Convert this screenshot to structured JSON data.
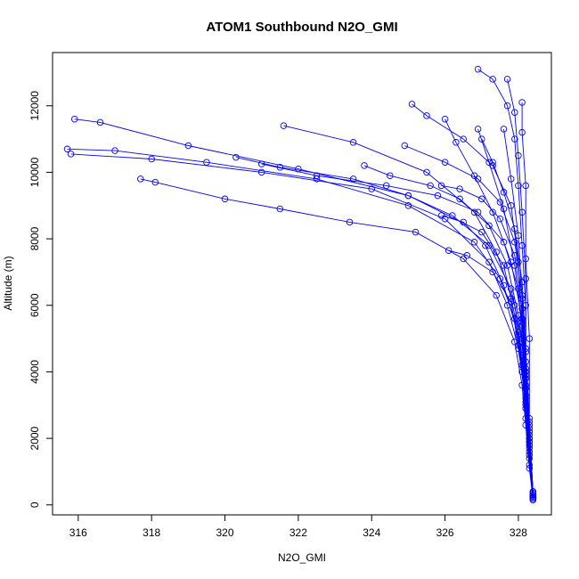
{
  "chart_data": {
    "type": "line",
    "title": "ATOM1 Southbound N2O_GMI",
    "xlabel": "N2O_GMI",
    "ylabel": "Altitude (m)",
    "xlim": [
      315.3,
      328.9
    ],
    "ylim": [
      -300,
      13600
    ],
    "xticks": [
      316,
      318,
      320,
      322,
      324,
      326,
      328
    ],
    "yticks": [
      0,
      2000,
      4000,
      6000,
      8000,
      10000,
      12000
    ],
    "grid": false,
    "legend": "none",
    "color": "#0000ff",
    "markers": "open circles joined by lines",
    "series": [
      {
        "x": [
          328.4,
          328.3,
          328.2,
          328.1,
          328.0,
          327.8,
          327.6,
          327.0,
          325.0,
          322.0,
          319.0,
          316.6,
          315.9
        ],
        "y": [
          200,
          1200,
          2600,
          4000,
          5200,
          6200,
          7200,
          8200,
          9300,
          10100,
          10800,
          11500,
          11600
        ]
      },
      {
        "x": [
          328.4,
          328.3,
          328.2,
          328.1,
          327.9,
          327.5,
          326.8,
          325.0,
          322.5,
          319.5,
          317.0,
          315.7
        ],
        "y": [
          300,
          1400,
          2900,
          4200,
          5600,
          6800,
          7900,
          9000,
          9800,
          10300,
          10650,
          10700
        ]
      },
      {
        "x": [
          328.4,
          328.3,
          328.2,
          328.0,
          327.7,
          327.2,
          326.0,
          324.0,
          321.0,
          318.0,
          315.8
        ],
        "y": [
          250,
          1600,
          3100,
          4700,
          6000,
          7300,
          8600,
          9500,
          10000,
          10400,
          10550
        ]
      },
      {
        "x": [
          328.4,
          328.3,
          328.2,
          328.1,
          327.9,
          327.4,
          326.5,
          325.2,
          323.4,
          321.5,
          320.0,
          318.1,
          317.7
        ],
        "y": [
          150,
          1100,
          2400,
          3600,
          4900,
          6300,
          7400,
          8200,
          8500,
          8900,
          9200,
          9700,
          9800
        ]
      },
      {
        "x": [
          328.4,
          328.3,
          328.2,
          328.0,
          327.8,
          327.3,
          326.6,
          326.1
        ],
        "y": [
          350,
          1800,
          3300,
          4800,
          6100,
          7000,
          7500,
          7650
        ]
      },
      {
        "x": [
          328.4,
          328.3,
          328.2,
          328.1,
          327.9,
          327.4,
          326.8,
          325.5,
          323.5,
          321.6
        ],
        "y": [
          200,
          1500,
          3000,
          4500,
          6000,
          7600,
          8800,
          10000,
          10900,
          11400
        ]
      },
      {
        "x": [
          328.4,
          328.3,
          328.2,
          328.1,
          328.0,
          327.8,
          327.3,
          326.5,
          325.5,
          325.1
        ],
        "y": [
          400,
          2000,
          3800,
          5500,
          7300,
          9000,
          10200,
          11000,
          11700,
          12050
        ]
      },
      {
        "x": [
          328.4,
          328.3,
          328.2,
          328.2,
          328.1,
          328.0,
          327.9,
          327.7,
          327.3,
          326.9
        ],
        "y": [
          300,
          2200,
          4100,
          6000,
          7800,
          9600,
          11000,
          12000,
          12800,
          13100
        ]
      },
      {
        "x": [
          328.4,
          328.3,
          328.2,
          328.2,
          328.1,
          328.0,
          327.9,
          327.7
        ],
        "y": [
          200,
          2400,
          4600,
          6800,
          8800,
          10500,
          11800,
          12800
        ]
      },
      {
        "x": [
          328.4,
          328.3,
          328.3,
          328.2,
          328.2,
          328.1,
          328.1
        ],
        "y": [
          150,
          2600,
          5000,
          7400,
          9600,
          11200,
          12100
        ]
      },
      {
        "x": [
          328.4,
          328.3,
          328.2,
          328.1,
          328.0,
          327.6,
          326.9,
          325.8,
          324.4,
          322.5,
          321.0
        ],
        "y": [
          300,
          1900,
          3500,
          5000,
          6500,
          7900,
          8800,
          9300,
          9600,
          9900,
          10250
        ]
      },
      {
        "x": [
          328.4,
          328.3,
          328.2,
          328.1,
          327.8,
          327.2,
          326.2,
          325.0,
          323.5,
          321.5,
          320.3
        ],
        "y": [
          200,
          1700,
          3200,
          4900,
          6500,
          7800,
          8700,
          9300,
          9800,
          10150,
          10450
        ]
      },
      {
        "x": [
          328.4,
          328.3,
          328.2,
          328.0,
          327.7,
          327.2,
          326.4,
          325.6,
          324.5,
          323.8
        ],
        "y": [
          250,
          2100,
          3900,
          5700,
          7200,
          8400,
          9200,
          9600,
          9900,
          10200
        ]
      },
      {
        "x": [
          328.4,
          328.3,
          328.2,
          328.1,
          327.9,
          327.5,
          326.9,
          326.0,
          324.9
        ],
        "y": [
          350,
          2300,
          4300,
          6300,
          7900,
          9100,
          9800,
          10300,
          10800
        ]
      },
      {
        "x": [
          328.4,
          328.3,
          328.2,
          328.1,
          327.8,
          327.3,
          326.8,
          326.3,
          326.0
        ],
        "y": [
          300,
          2000,
          3800,
          5600,
          7300,
          8800,
          9900,
          10900,
          11600
        ]
      },
      {
        "x": [
          328.4,
          328.3,
          328.2,
          328.1,
          327.9,
          327.6,
          327.2,
          326.9
        ],
        "y": [
          200,
          1800,
          3600,
          5400,
          7200,
          8900,
          10300,
          11300
        ]
      },
      {
        "x": [
          328.4,
          328.3,
          328.2,
          328.1,
          327.9,
          327.5,
          327.0,
          326.4,
          325.9
        ],
        "y": [
          400,
          2200,
          4000,
          5900,
          7500,
          8600,
          9200,
          9500,
          9600
        ]
      },
      {
        "x": [
          328.4,
          328.3,
          328.2,
          328.0,
          327.6,
          327.1,
          326.5,
          325.9
        ],
        "y": [
          300,
          1900,
          3500,
          5100,
          6600,
          7800,
          8500,
          8700
        ]
      },
      {
        "x": [
          328.4,
          328.3,
          328.2,
          328.1,
          327.9,
          327.6,
          327.3,
          327.0
        ],
        "y": [
          250,
          2500,
          4700,
          6700,
          8300,
          9400,
          10300,
          11000
        ]
      },
      {
        "x": [
          328.4,
          328.3,
          328.2,
          328.1,
          328.0,
          327.8,
          327.6
        ],
        "y": [
          200,
          2000,
          4000,
          6200,
          8100,
          9800,
          11300
        ]
      }
    ]
  }
}
